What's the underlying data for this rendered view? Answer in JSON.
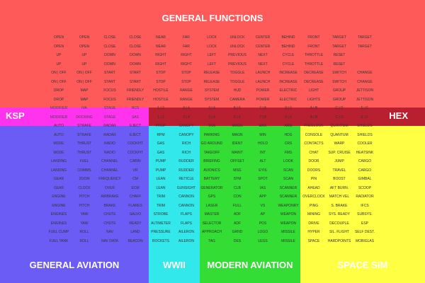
{
  "titles": {
    "general": "GENERAL FUNCTIONS",
    "ksp": "KSP",
    "hex": "HEX",
    "general_aviation": "GENERAL AVIATION",
    "ww2": "WWII",
    "modern_aviation": "MODERN AVIATION",
    "space_sim": "SPACE SIM"
  },
  "colors": {
    "general": "#ff5a5a",
    "ksp": "#ff33ee",
    "hex": "#b82030",
    "general_aviation": "#6a5cf5",
    "ww2": "#33e8ea",
    "modern_aviation": "#33dd33",
    "space_sim": "#ffff44"
  },
  "grid_rows": [
    [
      "OPEN",
      "OPEN",
      "CLOSE",
      "CLOSE",
      "NEAR",
      "FAR",
      "LOCK",
      "UNLOCK",
      "CENTER",
      "BEHIND",
      "FRONT",
      "TARGET",
      "TARGET"
    ],
    [
      "OPEN",
      "OPEN",
      "CLOSE",
      "CLOSE",
      "NEAR",
      "FAR",
      "LOCK",
      "UNLOCK",
      "CENTER",
      "BEHIND",
      "FRONT",
      "TARGET",
      "TARGET"
    ],
    [
      "UP",
      "UP",
      "DOWN",
      "DOWN",
      "RIGHT",
      "RIGHT",
      "LEFT",
      "PREVIOUS",
      "NEXT",
      "CYCLE",
      "THROTTLE",
      "RESET"
    ],
    [
      "UP",
      "UP",
      "DOWN",
      "DOWN",
      "RIGHT",
      "RIGHT",
      "LEFT",
      "PREVIOUS",
      "NEXT",
      "CYCLE",
      "THROTTLE",
      "RESET"
    ],
    [
      "ON | OFF",
      "ON | OFF",
      "START",
      "START",
      "STOP",
      "STOP",
      "RELEASE",
      "TOGGLE",
      "LAUNCH",
      "INCREASE",
      "DECREASE",
      "SWITCH",
      "CHANGE"
    ],
    [
      "ON | OFF",
      "ON | OFF",
      "START",
      "START",
      "STOP",
      "STOP",
      "RELEASE",
      "TOGGLE",
      "LAUNCH",
      "INCREASE",
      "DECREASE",
      "SWITCH",
      "CHANGE"
    ],
    [
      "DROP",
      "MAP",
      "FOCUS",
      "FRIENDLY",
      "HOSTILE",
      "RANGE",
      "SYSTEM",
      "HUD",
      "POWER",
      "ELECTRIC",
      "LIGHT",
      "GROUP",
      "JETTISON"
    ],
    [
      "DROP",
      "MAP",
      "FOCUS",
      "FRIENDLY",
      "HOSTILE",
      "RANGE",
      "SYSTEM",
      "CAMERA",
      "POWER",
      "ELECTRIC",
      "LIGHTS",
      "GROUP",
      "JETTISON"
    ],
    [
      "MODIFIER",
      "IVA",
      "STAGE",
      "RCS",
      "1 | 2",
      "3 | 4",
      "3 | 4",
      "5 | 6",
      "7 | 8",
      "9 | 0",
      "A | B",
      "C | D",
      "E | F"
    ],
    [
      "MODIFIER",
      "DOCKING",
      "STAGE",
      "SAS",
      "1 | 2",
      "3 | 4",
      "3 | 4",
      "5 | 6",
      "7 | 8",
      "9 | 0",
      "A | B",
      "C | D",
      "E | F"
    ],
    [
      "AUTO",
      "STRAFE",
      "RADAR",
      "EJECT",
      "PROP",
      "CANOPY",
      "TAXI",
      "MAGN",
      "MAX",
      "ARM",
      "FREELOOK",
      "QUANTUM",
      "SHIELDS"
    ],
    [
      "AUTO",
      "STRAFE",
      "RADAR",
      "EJECT",
      "RPM",
      "CANOPY",
      "PARKING",
      "MAGN",
      "MIN",
      "HDG",
      "CONSOLE",
      "QUANTUM",
      "SHIELDS"
    ],
    [
      "MODE",
      "THRUST",
      "RADIO",
      "COCKPIT",
      "GAS",
      "RICH",
      "GO AROUND",
      "IDENT",
      "HOLD",
      "CRS",
      "CONTACTS",
      "WARP",
      "COOLER"
    ],
    [
      "MODE",
      "THRUST",
      "RADIO",
      "COCKPIT",
      "GAS",
      "RICH",
      "TAKEOFF",
      "MAINT",
      "INT",
      "FMS",
      "CHAT",
      "SUP. CRUISE",
      "HEATSINK"
    ],
    [
      "LANDING",
      "FUEL",
      "CHANNEL",
      "CABIN",
      "PUMP",
      "RUDDER",
      "BRIEFING",
      "OFFSET",
      "ALT",
      "LOOK",
      "DOOR",
      "JUMP",
      "CARGO"
    ],
    [
      "LANDING",
      "COMMS",
      "CHANNEL",
      "VR",
      "PUMP",
      "RUDDER",
      "AVIONICS",
      "MSG",
      "EYIS",
      "SCAN",
      "DOORS",
      "TRAVEL",
      "CARGO"
    ],
    [
      "GEAR",
      "ZOOM",
      "FREQUENCY",
      "CM",
      "LEAN",
      "RETICLE",
      "BATTERY",
      "SYM",
      "SPOT",
      "SCAN",
      "PIN",
      "BOOST",
      "GIMBAL"
    ],
    [
      "GEAR",
      "CLOCK",
      "OVER",
      "ECM",
      "LEAN",
      "GUNSIGHT",
      "GENERATOR",
      "CLB",
      "IAS",
      "SCANNER",
      "AHEAD",
      "AFT BURN.",
      "SCOOP"
    ],
    [
      "ENGINE",
      "PITCH",
      "AIRBRAKE",
      "CHAFF",
      "TRIM",
      "CANNON",
      "GPS",
      "CON",
      "APP",
      "SCANNER",
      "OVERCLOCK",
      "MATCH VEL",
      "RADIATOR"
    ],
    [
      "ENGINE",
      "PITCH",
      "BRAKE",
      "FLARES",
      "TRIM",
      "CANNON",
      "LASER",
      "FULL",
      "VS",
      "WEAPONRY",
      "PING",
      "S. BRAKE",
      "IFCS"
    ],
    [
      "ENGINES",
      "YAW",
      "CHUTE",
      "SALVO",
      "STROBE",
      "FLAPS",
      "MASTER",
      "ADF",
      "AP",
      "WEAPON",
      "MINING",
      "SYS. READY",
      "SUBSYS."
    ],
    [
      "ENGINES",
      "YAW",
      "CHUTE",
      "READY",
      "ALTIMETER",
      "FLAPS",
      "SELECTOR",
      "ADF",
      "POS",
      "WEAPON",
      "DRIVE",
      "DECOUPLE",
      "ESP"
    ],
    [
      "FUEL CUMP",
      "ROLL",
      "NAV",
      "LAND",
      "PRESSURE",
      "AILERON",
      "APPROACH",
      "GRND",
      "LOGO",
      "MISSILE",
      "HYPER",
      "SIL. FLIGHT",
      "SELF DEST."
    ],
    [
      "FUEL TANK",
      "ROLL",
      "NAV DATA",
      "BEACON",
      "ROCKETS",
      "AILERON",
      "TAG",
      "DES",
      "LEGS",
      "MISSILE",
      "SPACE",
      "HARDPOINTS",
      "MOBIGLAS"
    ]
  ]
}
